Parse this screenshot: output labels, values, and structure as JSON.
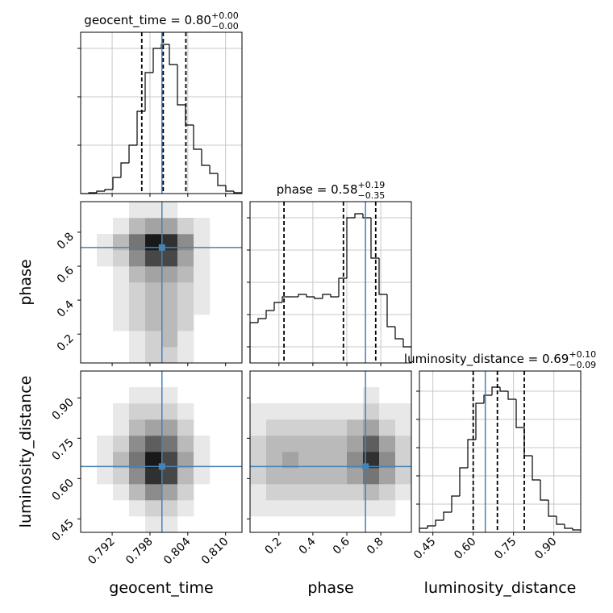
{
  "chart_data": {
    "type": "corner",
    "truth_color": "#4682b4",
    "grid": true,
    "parameters": [
      {
        "name": "geocent_time",
        "title": "geocent_time = 0.80",
        "title_upper": "+0.00",
        "title_lower": "−0.00",
        "lim": [
          0.787,
          0.8126
        ],
        "ticks": [
          0.792,
          0.798,
          0.804,
          {
            "value": 0.81,
            "label": "0.810"
          }
        ],
        "bins": [
          0.787,
          0.78828,
          0.78956,
          0.79084,
          0.79212,
          0.7934,
          0.79468,
          0.79596,
          0.79724,
          0.79852,
          0.7998,
          0.80108,
          0.80236,
          0.80364,
          0.80492,
          0.8062,
          0.80748,
          0.80876,
          0.81004,
          0.81132,
          0.8126
        ],
        "counts": [
          0,
          1,
          3,
          5,
          20,
          38,
          60,
          102,
          150,
          180,
          185,
          160,
          110,
          85,
          55,
          35,
          25,
          10,
          3,
          1
        ],
        "hist_ylim": [
          0,
          200
        ],
        "hist_yticks": [
          60,
          120,
          180
        ],
        "quantiles": [
          0.7967,
          0.8001,
          0.8037
        ],
        "truth": 0.7999,
        "bins2d": [
          0.787,
          0.78956,
          0.79212,
          0.79468,
          0.79724,
          0.7998,
          0.80236,
          0.80492,
          0.80748,
          0.81004,
          0.8126
        ]
      },
      {
        "name": "phase",
        "title": "phase = 0.58",
        "title_upper": "+0.19",
        "title_lower": "−0.35",
        "lim": [
          0.03,
          0.98
        ],
        "ticks": [
          0.2,
          0.4,
          0.6,
          0.8
        ],
        "bins": [
          0.03,
          0.0775,
          0.125,
          0.1725,
          0.22,
          0.2675,
          0.315,
          0.3625,
          0.41,
          0.4575,
          0.505,
          0.5525,
          0.6,
          0.6475,
          0.695,
          0.7425,
          0.79,
          0.8375,
          0.885,
          0.9325,
          0.98
        ],
        "counts": [
          50,
          55,
          65,
          75,
          82,
          82,
          85,
          82,
          80,
          85,
          82,
          105,
          180,
          185,
          180,
          130,
          85,
          45,
          30,
          20
        ],
        "hist_ylim": [
          0,
          200
        ],
        "hist_yticks": [
          20,
          60,
          100,
          140,
          180
        ],
        "quantiles": [
          0.23,
          0.58,
          0.77
        ],
        "truth": 0.71,
        "bins2d": [
          0.03,
          0.125,
          0.22,
          0.315,
          0.41,
          0.505,
          0.6,
          0.695,
          0.79,
          0.885,
          0.98
        ]
      },
      {
        "name": "luminosity_distance",
        "title": "luminosity_distance = 0.69",
        "title_upper": "+0.10",
        "title_lower": "−0.09",
        "lim": [
          0.4,
          1.0
        ],
        "ticks": [
          0.45,
          {
            "value": 0.6,
            "label": "0.60"
          },
          0.75,
          {
            "value": 0.9,
            "label": "0.90"
          }
        ],
        "bins": [
          0.4,
          0.43,
          0.46,
          0.49,
          0.52,
          0.55,
          0.58,
          0.61,
          0.64,
          0.67,
          0.7,
          0.73,
          0.76,
          0.79,
          0.82,
          0.85,
          0.88,
          0.91,
          0.94,
          0.97,
          1.0
        ],
        "counts": [
          5,
          8,
          15,
          25,
          45,
          80,
          115,
          160,
          170,
          180,
          175,
          165,
          130,
          95,
          65,
          40,
          20,
          10,
          5,
          3
        ],
        "hist_ylim": [
          0,
          200
        ],
        "hist_yticks": [
          35,
          70,
          105,
          140,
          175
        ],
        "quantiles": [
          0.6,
          0.69,
          0.79
        ],
        "truth": 0.645,
        "bins2d": [
          0.4,
          0.46,
          0.52,
          0.58,
          0.64,
          0.7,
          0.76,
          0.82,
          0.88,
          0.94,
          1.0
        ]
      }
    ],
    "density": [
      {
        "values": [
          [
            0,
            0,
            0,
            1,
            2,
            2,
            1,
            0,
            0,
            0
          ],
          [
            0,
            0,
            0,
            1,
            2,
            3,
            1,
            0,
            0,
            0
          ],
          [
            0,
            0,
            1,
            2,
            3,
            3,
            2,
            0,
            0,
            0
          ],
          [
            0,
            0,
            1,
            2,
            3,
            3,
            2,
            1,
            0,
            0
          ],
          [
            0,
            0,
            1,
            2,
            3,
            3,
            2,
            1,
            0,
            0
          ],
          [
            0,
            0,
            1,
            3,
            4,
            4,
            3,
            1,
            0,
            0
          ],
          [
            0,
            1,
            2,
            5,
            8,
            8,
            4,
            1,
            0,
            0
          ],
          [
            0,
            1,
            3,
            6,
            10,
            9,
            5,
            1,
            0,
            0
          ],
          [
            0,
            0,
            1,
            3,
            4,
            4,
            2,
            1,
            0,
            0
          ],
          [
            0,
            0,
            0,
            1,
            1,
            1,
            0,
            0,
            0,
            0
          ]
        ]
      },
      {
        "values": [
          [
            0,
            0,
            0,
            0,
            1,
            1,
            0,
            0,
            0,
            0
          ],
          [
            0,
            0,
            0,
            1,
            2,
            2,
            1,
            0,
            0,
            0
          ],
          [
            0,
            0,
            1,
            3,
            5,
            4,
            2,
            0,
            0,
            0
          ],
          [
            0,
            1,
            2,
            5,
            9,
            8,
            3,
            1,
            0,
            0
          ],
          [
            0,
            1,
            3,
            6,
            10,
            8,
            4,
            1,
            0,
            0
          ],
          [
            0,
            1,
            2,
            5,
            7,
            6,
            3,
            1,
            0,
            0
          ],
          [
            0,
            0,
            1,
            3,
            4,
            4,
            2,
            0,
            0,
            0
          ],
          [
            0,
            0,
            1,
            2,
            2,
            2,
            1,
            0,
            0,
            0
          ],
          [
            0,
            0,
            0,
            1,
            1,
            1,
            0,
            0,
            0,
            0
          ],
          [
            0,
            0,
            0,
            0,
            0,
            0,
            0,
            0,
            0,
            0
          ]
        ]
      },
      {
        "values": [
          [
            0,
            0,
            0,
            0,
            0,
            0,
            0,
            0,
            0,
            0
          ],
          [
            1,
            1,
            1,
            1,
            1,
            1,
            1,
            1,
            1,
            0
          ],
          [
            1,
            2,
            2,
            2,
            2,
            2,
            2,
            3,
            2,
            1
          ],
          [
            2,
            3,
            3,
            3,
            3,
            3,
            4,
            6,
            4,
            2
          ],
          [
            2,
            3,
            4,
            3,
            3,
            3,
            5,
            9,
            5,
            2
          ],
          [
            2,
            3,
            3,
            3,
            3,
            3,
            4,
            7,
            4,
            2
          ],
          [
            1,
            2,
            2,
            2,
            2,
            2,
            3,
            4,
            2,
            1
          ],
          [
            1,
            1,
            1,
            1,
            1,
            1,
            1,
            2,
            1,
            1
          ],
          [
            0,
            0,
            0,
            0,
            0,
            0,
            0,
            1,
            0,
            0
          ],
          [
            0,
            0,
            0,
            0,
            0,
            0,
            0,
            0,
            0,
            0
          ]
        ]
      }
    ]
  }
}
